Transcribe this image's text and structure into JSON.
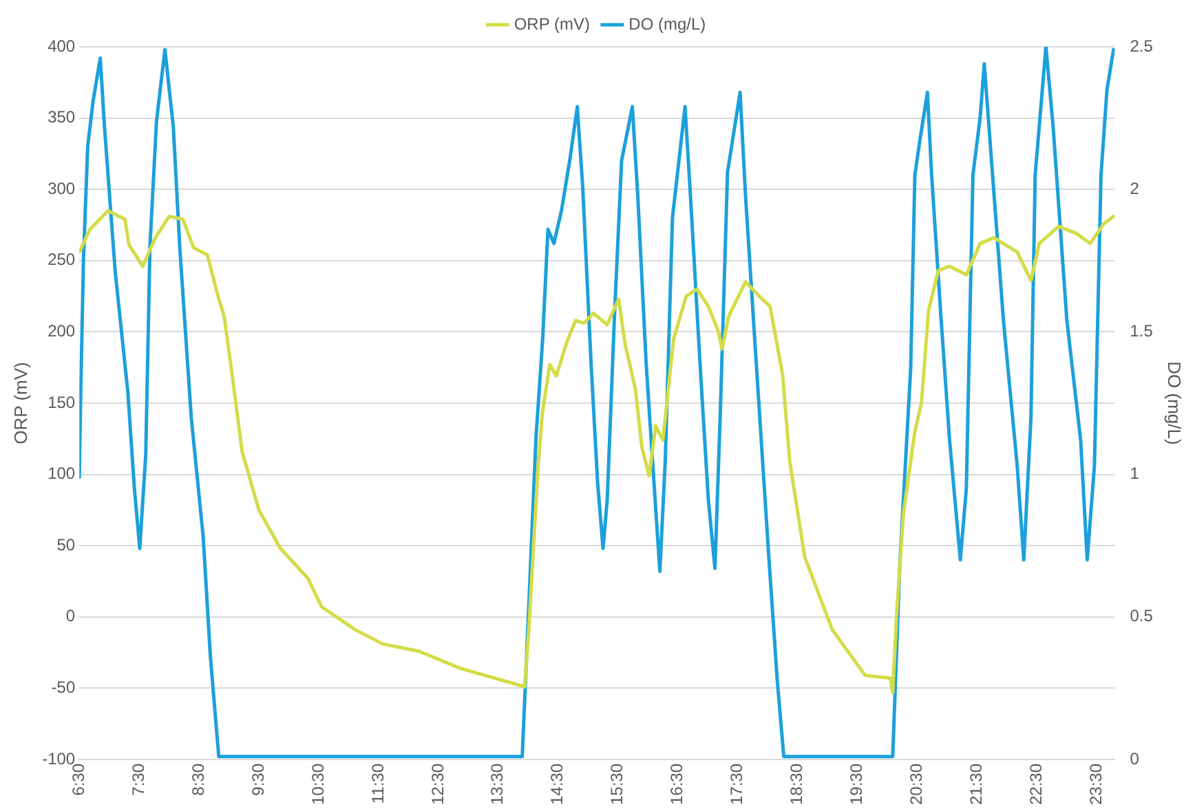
{
  "chart_data": {
    "type": "line",
    "ylabel": "ORP (mV)",
    "y2label": "DO (mg/L)",
    "legend": "top",
    "grid": "y",
    "marker": "none",
    "line_style": "solid",
    "xlim": [
      6.5,
      23.8
    ],
    "xticks": [
      {
        "value": 6.5,
        "label": "6:30"
      },
      {
        "value": 7.5,
        "label": "7:30"
      },
      {
        "value": 8.5,
        "label": "8:30"
      },
      {
        "value": 9.5,
        "label": "9:30"
      },
      {
        "value": 10.5,
        "label": "10:30"
      },
      {
        "value": 11.5,
        "label": "11:30"
      },
      {
        "value": 12.5,
        "label": "12:30"
      },
      {
        "value": 13.5,
        "label": "13:30"
      },
      {
        "value": 14.5,
        "label": "14:30"
      },
      {
        "value": 15.5,
        "label": "15:30"
      },
      {
        "value": 16.5,
        "label": "16:30"
      },
      {
        "value": 17.5,
        "label": "17:30"
      },
      {
        "value": 18.5,
        "label": "18:30"
      },
      {
        "value": 19.5,
        "label": "19:30"
      },
      {
        "value": 20.5,
        "label": "20:30"
      },
      {
        "value": 21.5,
        "label": "21:30"
      },
      {
        "value": 22.5,
        "label": "22:30"
      },
      {
        "value": 23.5,
        "label": "23:30"
      }
    ],
    "ylim": [
      -100,
      400
    ],
    "yticks": [
      -100,
      -50,
      0,
      50,
      100,
      150,
      200,
      250,
      300,
      350,
      400
    ],
    "y2lim": [
      0,
      2.5
    ],
    "y2ticks": [
      0,
      0.5,
      1,
      1.5,
      2,
      2.5
    ],
    "series": [
      {
        "name": "ORP (mV)",
        "color": "#d4dc48",
        "x": [
          6.5,
          6.68,
          6.98,
          7.26,
          7.33,
          7.56,
          7.77,
          8.0,
          8.23,
          8.41,
          8.64,
          8.81,
          8.92,
          9.04,
          9.22,
          9.5,
          9.86,
          10.32,
          10.55,
          11.11,
          11.57,
          12.17,
          12.86,
          13.94,
          14.01,
          14.17,
          14.24,
          14.36,
          14.47,
          14.63,
          14.79,
          14.93,
          15.09,
          15.32,
          15.51,
          15.62,
          15.79,
          15.9,
          16.02,
          16.13,
          16.25,
          16.43,
          16.64,
          16.82,
          17.01,
          17.17,
          17.24,
          17.35,
          17.63,
          17.86,
          18.04,
          18.25,
          18.37,
          18.62,
          19.08,
          19.63,
          20.05,
          20.09,
          20.16,
          20.27,
          20.46,
          20.57,
          20.69,
          20.85,
          21.04,
          21.32,
          21.55,
          21.78,
          22.17,
          22.4,
          22.54,
          22.86,
          23.16,
          23.39,
          23.62,
          23.78
        ],
        "values": [
          256,
          272,
          285,
          279,
          261,
          246,
          266,
          281,
          279,
          259,
          254,
          226,
          211,
          174,
          116,
          75,
          48,
          27,
          7,
          -9,
          -19,
          -24,
          -36,
          -49,
          -9,
          109,
          144,
          177,
          169,
          191,
          208,
          206,
          213,
          205,
          223,
          191,
          160,
          119,
          99,
          134,
          124,
          195,
          225,
          230,
          218,
          201,
          188,
          211,
          235,
          225,
          218,
          170,
          109,
          42,
          -9,
          -41,
          -43,
          -53,
          5,
          73,
          130,
          150,
          215,
          243,
          246,
          240,
          262,
          266,
          256,
          236,
          262,
          274,
          269,
          262,
          276,
          281
        ]
      },
      {
        "name": "DO (mg/L)",
        "color": "#1ca0dc",
        "axis": "y2",
        "x": [
          6.5,
          6.52,
          6.57,
          6.64,
          6.73,
          6.85,
          6.92,
          7.1,
          7.31,
          7.42,
          7.51,
          7.61,
          7.68,
          7.79,
          7.93,
          8.07,
          8.18,
          8.37,
          8.57,
          8.69,
          8.83,
          13.9,
          14.01,
          14.13,
          14.24,
          14.33,
          14.43,
          14.56,
          14.7,
          14.82,
          14.91,
          15.05,
          15.16,
          15.25,
          15.32,
          15.44,
          15.56,
          15.74,
          15.83,
          15.97,
          16.13,
          16.2,
          16.29,
          16.41,
          16.62,
          16.71,
          16.87,
          17.01,
          17.12,
          17.21,
          17.33,
          17.54,
          17.63,
          17.81,
          18.02,
          18.16,
          18.27,
          20.09,
          20.21,
          20.39,
          20.46,
          20.55,
          20.67,
          20.74,
          20.9,
          21.04,
          21.22,
          21.32,
          21.43,
          21.55,
          21.62,
          21.73,
          21.94,
          22.17,
          22.28,
          22.4,
          22.47,
          22.65,
          22.77,
          23.0,
          23.23,
          23.34,
          23.46,
          23.57,
          23.67,
          23.78
        ],
        "values": [
          0.99,
          1.25,
          1.76,
          2.15,
          2.31,
          2.46,
          2.22,
          1.71,
          1.29,
          0.95,
          0.74,
          1.07,
          1.8,
          2.24,
          2.49,
          2.22,
          1.79,
          1.2,
          0.78,
          0.36,
          0.01,
          0.01,
          0.54,
          1.13,
          1.47,
          1.86,
          1.81,
          1.93,
          2.11,
          2.29,
          2.01,
          1.39,
          0.97,
          0.74,
          0.91,
          1.55,
          2.1,
          2.29,
          1.98,
          1.39,
          0.88,
          0.66,
          1.05,
          1.9,
          2.29,
          1.98,
          1.39,
          0.91,
          0.67,
          1.22,
          2.06,
          2.34,
          1.98,
          1.39,
          0.71,
          0.28,
          0.01,
          0.01,
          0.69,
          1.37,
          2.05,
          2.18,
          2.34,
          2.05,
          1.54,
          1.12,
          0.7,
          0.95,
          2.05,
          2.25,
          2.44,
          2.13,
          1.54,
          1.03,
          0.7,
          1.2,
          2.05,
          2.5,
          2.22,
          1.54,
          1.12,
          0.7,
          1.03,
          2.05,
          2.35,
          2.49
        ]
      }
    ]
  }
}
